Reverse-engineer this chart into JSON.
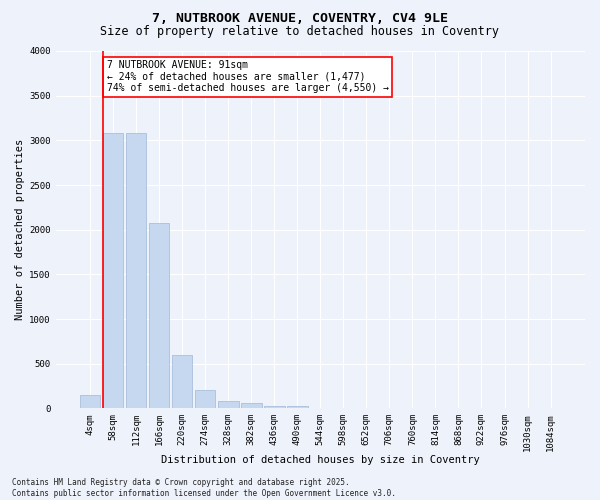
{
  "title_line1": "7, NUTBROOK AVENUE, COVENTRY, CV4 9LE",
  "title_line2": "Size of property relative to detached houses in Coventry",
  "xlabel": "Distribution of detached houses by size in Coventry",
  "ylabel": "Number of detached properties",
  "footnote": "Contains HM Land Registry data © Crown copyright and database right 2025.\nContains public sector information licensed under the Open Government Licence v3.0.",
  "bar_labels": [
    "4sqm",
    "58sqm",
    "112sqm",
    "166sqm",
    "220sqm",
    "274sqm",
    "328sqm",
    "382sqm",
    "436sqm",
    "490sqm",
    "544sqm",
    "598sqm",
    "652sqm",
    "706sqm",
    "760sqm",
    "814sqm",
    "868sqm",
    "922sqm",
    "976sqm",
    "1030sqm",
    "1084sqm"
  ],
  "bar_values": [
    150,
    3080,
    3080,
    2070,
    600,
    200,
    85,
    55,
    30,
    30,
    0,
    0,
    0,
    0,
    0,
    0,
    0,
    0,
    0,
    0,
    0
  ],
  "bar_color": "#c5d8f0",
  "bar_edge_color": "#a0b8d8",
  "vline_color": "red",
  "vline_x": 0.575,
  "ylim": [
    0,
    4000
  ],
  "yticks": [
    0,
    500,
    1000,
    1500,
    2000,
    2500,
    3000,
    3500,
    4000
  ],
  "annotation_text": "7 NUTBROOK AVENUE: 91sqm\n← 24% of detached houses are smaller (1,477)\n74% of semi-detached houses are larger (4,550) →",
  "annotation_box_facecolor": "white",
  "annotation_box_edgecolor": "red",
  "bg_color": "#eef2fb",
  "plot_bg_color": "#eef2fb",
  "grid_color": "white",
  "title_fontsize": 9.5,
  "subtitle_fontsize": 8.5,
  "axis_label_fontsize": 7.5,
  "tick_fontsize": 6.5,
  "annotation_fontsize": 7,
  "footnote_fontsize": 5.5,
  "ylabel_fontsize": 7.5
}
